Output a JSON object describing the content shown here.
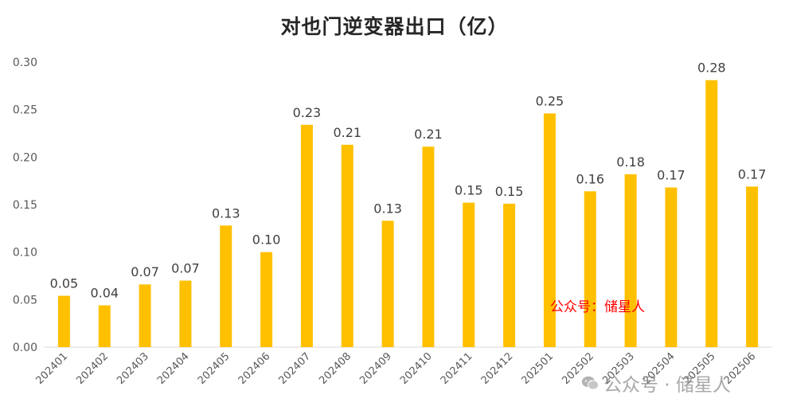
{
  "chart_data": {
    "type": "bar",
    "title": "对也门逆变器出口（亿）",
    "categories": [
      "202401",
      "202402",
      "202403",
      "202404",
      "202405",
      "202406",
      "202407",
      "202408",
      "202409",
      "202410",
      "202411",
      "202412",
      "202501",
      "202502",
      "202503",
      "202504",
      "202505",
      "202506"
    ],
    "values": [
      0.054,
      0.044,
      0.066,
      0.07,
      0.128,
      0.1,
      0.234,
      0.213,
      0.133,
      0.211,
      0.152,
      0.151,
      0.246,
      0.164,
      0.182,
      0.168,
      0.281,
      0.169
    ],
    "data_labels": [
      "0.05",
      "0.04",
      "0.07",
      "0.07",
      "0.13",
      "0.10",
      "0.23",
      "0.21",
      "0.13",
      "0.21",
      "0.15",
      "0.15",
      "0.25",
      "0.16",
      "0.18",
      "0.17",
      "0.28",
      "0.17"
    ],
    "y_ticks": [
      "0.00",
      "0.05",
      "0.10",
      "0.15",
      "0.20",
      "0.25",
      "0.30"
    ],
    "ylim": [
      0,
      0.3
    ],
    "xlabel": "",
    "ylabel": "",
    "grid": false,
    "bar_color": "#FFC000"
  },
  "watermarks": {
    "red": "公众号：储星人",
    "bottom": "公众号 · 储星人"
  }
}
